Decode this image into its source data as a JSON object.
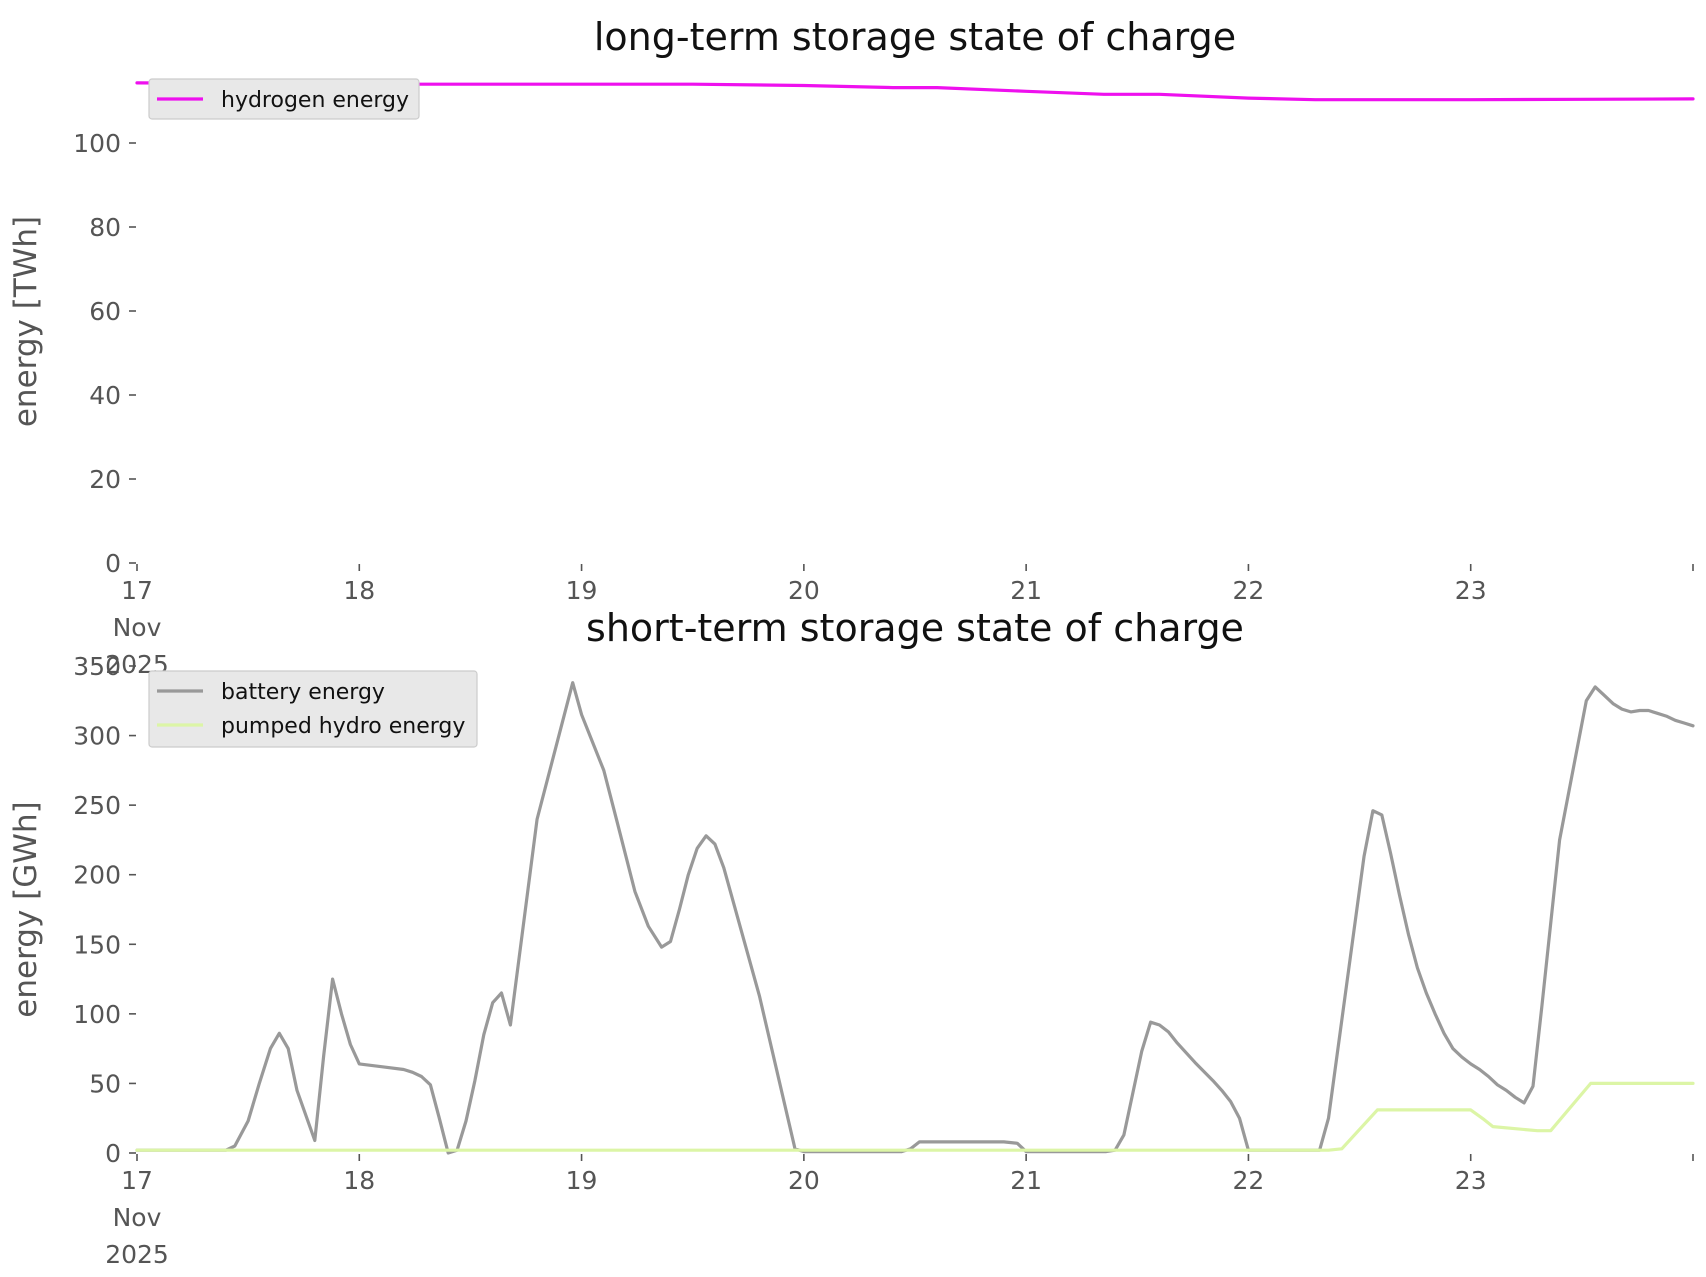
{
  "chart_data": [
    {
      "type": "line",
      "title": "long-term storage state of charge",
      "xlabel": "",
      "ylabel": "energy [TWh]",
      "x_unit": "days, 17 Nov 2025 – 24 Nov 2025",
      "xlim": [
        17,
        24
      ],
      "ylim": [
        0,
        115
      ],
      "yticks": [
        {
          "v": 0,
          "label": "0"
        },
        {
          "v": 20,
          "label": "20"
        },
        {
          "v": 40,
          "label": "40"
        },
        {
          "v": 60,
          "label": "60"
        },
        {
          "v": 80,
          "label": "80"
        },
        {
          "v": 100,
          "label": "100"
        }
      ],
      "xticks": [
        {
          "v": 17,
          "label": [
            "17",
            "Nov",
            "2025"
          ]
        },
        {
          "v": 18,
          "label": [
            "18"
          ]
        },
        {
          "v": 19,
          "label": [
            "19"
          ]
        },
        {
          "v": 20,
          "label": [
            "20"
          ]
        },
        {
          "v": 21,
          "label": [
            "21"
          ]
        },
        {
          "v": 22,
          "label": [
            "22"
          ]
        },
        {
          "v": 23,
          "label": [
            "23"
          ]
        },
        {
          "v": 24,
          "label": [
            ""
          ]
        }
      ],
      "grid": false,
      "legend": "top-left",
      "series": [
        {
          "name": "hydrogen energy",
          "color": "#ee10ee",
          "x": [
            17.0,
            17.5,
            18.0,
            18.5,
            19.0,
            19.5,
            20.0,
            20.4,
            20.6,
            21.0,
            21.35,
            21.6,
            22.0,
            22.3,
            22.6,
            23.0,
            23.5,
            24.0
          ],
          "y": [
            114.3,
            114.2,
            114.0,
            114.0,
            114.0,
            114.0,
            113.7,
            113.2,
            113.2,
            112.3,
            111.6,
            111.6,
            110.7,
            110.3,
            110.3,
            110.3,
            110.4,
            110.5
          ]
        }
      ]
    },
    {
      "type": "line",
      "title": "short-term storage state of charge",
      "xlabel": "",
      "ylabel": "energy [GWh]",
      "x_unit": "days, 17 Nov 2025 – 24 Nov 2025",
      "xlim": [
        17,
        24
      ],
      "ylim": [
        0,
        350
      ],
      "yticks": [
        {
          "v": 0,
          "label": "0"
        },
        {
          "v": 50,
          "label": "50"
        },
        {
          "v": 100,
          "label": "100"
        },
        {
          "v": 150,
          "label": "150"
        },
        {
          "v": 200,
          "label": "200"
        },
        {
          "v": 250,
          "label": "250"
        },
        {
          "v": 300,
          "label": "300"
        },
        {
          "v": 350,
          "label": "350"
        }
      ],
      "xticks": [
        {
          "v": 17,
          "label": [
            "17",
            "Nov",
            "2025"
          ]
        },
        {
          "v": 18,
          "label": [
            "18"
          ]
        },
        {
          "v": 19,
          "label": [
            "19"
          ]
        },
        {
          "v": 20,
          "label": [
            "20"
          ]
        },
        {
          "v": 21,
          "label": [
            "21"
          ]
        },
        {
          "v": 22,
          "label": [
            "22"
          ]
        },
        {
          "v": 23,
          "label": [
            "23"
          ]
        },
        {
          "v": 24,
          "label": [
            ""
          ]
        }
      ],
      "grid": false,
      "legend": "top-left",
      "series": [
        {
          "name": "battery energy",
          "color": "#999999",
          "x": [
            17.0,
            17.4,
            17.44,
            17.5,
            17.55,
            17.6,
            17.64,
            17.68,
            17.72,
            17.8,
            17.84,
            17.88,
            17.92,
            17.96,
            18.0,
            18.1,
            18.2,
            18.24,
            18.28,
            18.32,
            18.36,
            18.4,
            18.44,
            18.48,
            18.52,
            18.56,
            18.6,
            18.64,
            18.68,
            18.8,
            18.96,
            19.0,
            19.1,
            19.16,
            19.24,
            19.3,
            19.36,
            19.4,
            19.44,
            19.48,
            19.52,
            19.56,
            19.6,
            19.64,
            19.8,
            19.96,
            20.0,
            20.44,
            20.48,
            20.52,
            20.9,
            20.96,
            21.0,
            21.36,
            21.4,
            21.44,
            21.48,
            21.52,
            21.56,
            21.6,
            21.64,
            21.68,
            21.76,
            21.84,
            21.88,
            21.92,
            21.96,
            22.0,
            22.32,
            22.36,
            22.52,
            22.56,
            22.6,
            22.64,
            22.68,
            22.72,
            22.76,
            22.8,
            22.84,
            22.88,
            22.92,
            22.96,
            23.0,
            23.04,
            23.08,
            23.12,
            23.16,
            23.2,
            23.24,
            23.28,
            23.32,
            23.36,
            23.4,
            23.52,
            23.56,
            23.6,
            23.64,
            23.68,
            23.72,
            23.76,
            23.8,
            23.84,
            23.88,
            23.92,
            23.96,
            24.0
          ],
          "y": [
            2,
            2,
            5,
            23,
            50,
            75,
            86,
            75,
            45,
            9,
            70,
            125,
            100,
            78,
            64,
            62,
            60,
            58,
            55,
            49,
            25,
            0,
            2,
            23,
            52,
            85,
            108,
            115,
            92,
            240,
            338,
            315,
            275,
            238,
            188,
            163,
            148,
            152,
            175,
            200,
            219,
            228,
            222,
            205,
            113,
            3,
            1,
            1,
            3,
            8,
            8,
            7,
            1,
            1,
            2,
            13,
            43,
            73,
            94,
            92,
            87,
            79,
            65,
            52,
            45,
            37,
            25,
            2,
            2,
            25,
            213,
            246,
            243,
            215,
            185,
            157,
            133,
            115,
            100,
            86,
            75,
            69,
            64,
            60,
            55,
            49,
            45,
            40,
            36,
            48,
            105,
            165,
            225,
            325,
            335,
            329,
            323,
            319,
            317,
            318,
            318,
            316,
            314,
            311,
            309,
            307
          ]
        },
        {
          "name": "pumped hydro energy",
          "color": "#dcf5a6",
          "x": [
            17.0,
            22.36,
            22.42,
            22.58,
            22.64,
            22.96,
            23.0,
            23.06,
            23.1,
            23.3,
            23.36,
            23.54,
            23.6,
            24.0
          ],
          "y": [
            2,
            2,
            3,
            31,
            31,
            31,
            31,
            24,
            19,
            16,
            16,
            50,
            50,
            50
          ]
        }
      ]
    }
  ]
}
